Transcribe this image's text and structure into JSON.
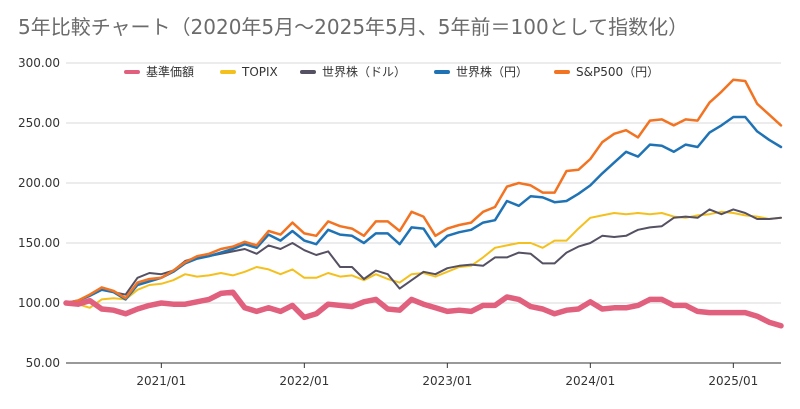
{
  "chart_data": {
    "type": "line",
    "title": "5年比較チャート（2020年5月～2025年5月、5年前＝100として指数化）",
    "xlabel": "",
    "ylabel": "",
    "ylim": [
      50,
      300
    ],
    "y_ticks": [
      "50.00",
      "100.00",
      "150.00",
      "200.00",
      "250.00",
      "300.00"
    ],
    "y_tick_values": [
      50,
      100,
      150,
      200,
      250,
      300
    ],
    "x_ticks": [
      "2021/01",
      "2022/01",
      "2023/01",
      "2024/01",
      "2025/01"
    ],
    "x_tick_positions": [
      8,
      20,
      32,
      44,
      56
    ],
    "grid": true,
    "legend_position": "top",
    "x": [
      "2020/05",
      "2020/06",
      "2020/07",
      "2020/08",
      "2020/09",
      "2020/10",
      "2020/11",
      "2020/12",
      "2021/01",
      "2021/02",
      "2021/03",
      "2021/04",
      "2021/05",
      "2021/06",
      "2021/07",
      "2021/08",
      "2021/09",
      "2021/10",
      "2021/11",
      "2021/12",
      "2022/01",
      "2022/02",
      "2022/03",
      "2022/04",
      "2022/05",
      "2022/06",
      "2022/07",
      "2022/08",
      "2022/09",
      "2022/10",
      "2022/11",
      "2022/12",
      "2023/01",
      "2023/02",
      "2023/03",
      "2023/04",
      "2023/05",
      "2023/06",
      "2023/07",
      "2023/08",
      "2023/09",
      "2023/10",
      "2023/11",
      "2023/12",
      "2024/01",
      "2024/02",
      "2024/03",
      "2024/04",
      "2024/05",
      "2024/06",
      "2024/07",
      "2024/08",
      "2024/09",
      "2024/10",
      "2024/11",
      "2024/12",
      "2025/01",
      "2025/02",
      "2025/03",
      "2025/04",
      "2025/05"
    ],
    "series": [
      {
        "name": "基準価額",
        "color": "#e0607e",
        "width": 5.5,
        "values": [
          100,
          99,
          102,
          95,
          94,
          91,
          95,
          98,
          100,
          99,
          99,
          101,
          103,
          108,
          109,
          96,
          93,
          96,
          93,
          98,
          88,
          91,
          99,
          98,
          97,
          101,
          103,
          95,
          94,
          103,
          99,
          96,
          93,
          94,
          93,
          98,
          98,
          105,
          103,
          97,
          95,
          91,
          94,
          95,
          101,
          95,
          96,
          96,
          98,
          103,
          103,
          98,
          98,
          93,
          92,
          92,
          92,
          92,
          89,
          84,
          81
        ]
      },
      {
        "name": "TOPIX",
        "color": "#f4c01e",
        "width": 2,
        "values": [
          100,
          99,
          96,
          103,
          104,
          103,
          111,
          115,
          116,
          119,
          124,
          122,
          123,
          125,
          123,
          126,
          130,
          128,
          124,
          128,
          121,
          121,
          125,
          122,
          123,
          119,
          124,
          120,
          117,
          124,
          125,
          122,
          126,
          130,
          131,
          138,
          146,
          148,
          150,
          150,
          146,
          152,
          152,
          162,
          171,
          173,
          175,
          174,
          175,
          174,
          175,
          172,
          171,
          173,
          174,
          176,
          175,
          173,
          172,
          170,
          171
        ]
      },
      {
        "name": "世界株（ドル）",
        "color": "#555062",
        "width": 2,
        "values": [
          100,
          102,
          106,
          113,
          109,
          107,
          121,
          125,
          124,
          127,
          135,
          138,
          139,
          141,
          143,
          145,
          141,
          148,
          145,
          150,
          144,
          140,
          143,
          130,
          130,
          120,
          127,
          124,
          112,
          119,
          126,
          124,
          129,
          131,
          132,
          131,
          138,
          138,
          142,
          141,
          133,
          133,
          142,
          147,
          150,
          156,
          155,
          156,
          161,
          163,
          164,
          171,
          172,
          171,
          178,
          174,
          178,
          175,
          170,
          170,
          171
        ]
      },
      {
        "name": "世界株（円）",
        "color": "#1f73b5",
        "width": 2.5,
        "values": [
          100,
          102,
          106,
          111,
          109,
          103,
          115,
          118,
          121,
          126,
          133,
          137,
          139,
          142,
          145,
          149,
          146,
          157,
          152,
          160,
          152,
          149,
          161,
          157,
          156,
          150,
          158,
          158,
          149,
          163,
          162,
          147,
          156,
          159,
          161,
          167,
          169,
          185,
          181,
          189,
          188,
          184,
          185,
          191,
          198,
          208,
          217,
          226,
          222,
          232,
          231,
          226,
          232,
          230,
          242,
          248,
          255,
          255,
          243,
          236,
          230
        ]
      },
      {
        "name": "S&P500（円）",
        "color": "#f27321",
        "width": 2.5,
        "values": [
          100,
          102,
          107,
          113,
          110,
          104,
          117,
          120,
          121,
          127,
          134,
          139,
          141,
          145,
          147,
          151,
          148,
          160,
          157,
          167,
          158,
          156,
          168,
          164,
          162,
          156,
          168,
          168,
          160,
          176,
          172,
          156,
          162,
          165,
          167,
          176,
          180,
          197,
          200,
          198,
          192,
          192,
          210,
          211,
          220,
          234,
          241,
          244,
          238,
          252,
          253,
          248,
          253,
          252,
          267,
          276,
          286,
          285,
          266,
          257,
          248
        ]
      }
    ]
  }
}
